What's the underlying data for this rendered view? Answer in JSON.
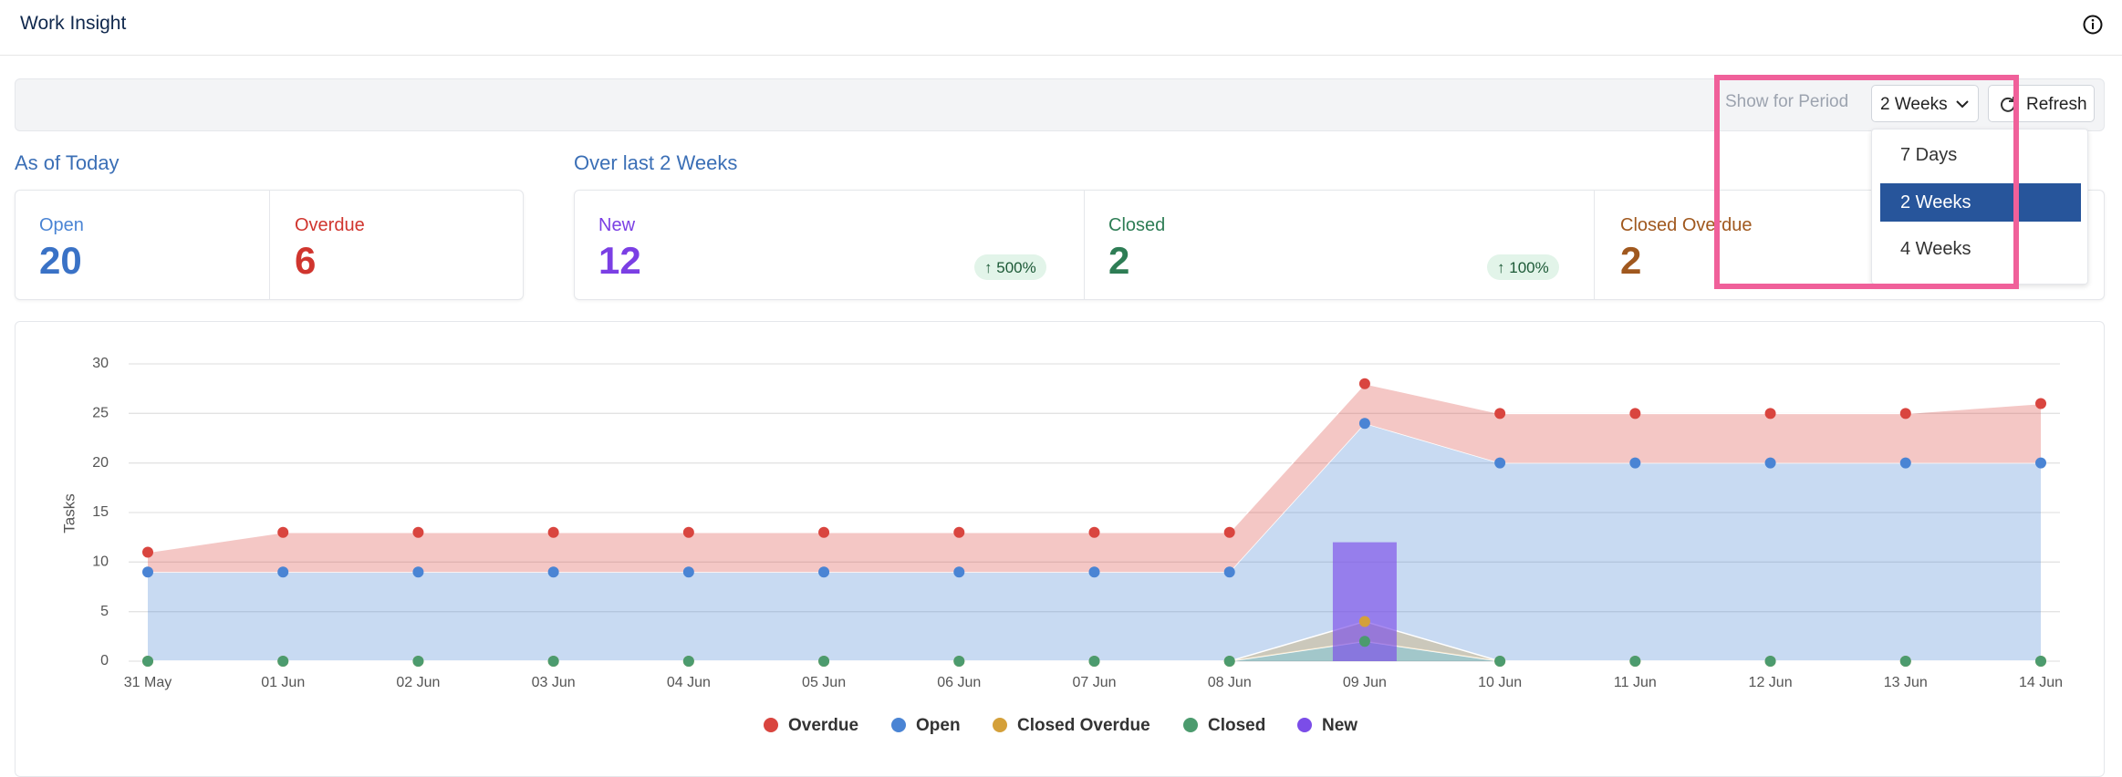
{
  "header": {
    "title": "Work Insight"
  },
  "toolbar": {
    "period_label": "Show for Period",
    "selected": "2 Weeks",
    "refresh": "Refresh",
    "options": [
      "7 Days",
      "2 Weeks",
      "4 Weeks"
    ]
  },
  "as_of_today": {
    "title": "As of Today",
    "cards": [
      {
        "label": "Open",
        "value": 20
      },
      {
        "label": "Overdue",
        "value": 6
      }
    ]
  },
  "over_period": {
    "title": "Over last 2 Weeks",
    "cards": [
      {
        "label": "New",
        "value": 12,
        "change": "500%"
      },
      {
        "label": "Closed",
        "value": 2,
        "change": "100%"
      },
      {
        "label": "Closed Overdue",
        "value": 2
      }
    ]
  },
  "chart_data": {
    "type": "area",
    "y_label": "Tasks",
    "categories": [
      "31 May",
      "01 Jun",
      "02 Jun",
      "03 Jun",
      "04 Jun",
      "05 Jun",
      "06 Jun",
      "07 Jun",
      "08 Jun",
      "09 Jun",
      "10 Jun",
      "11 Jun",
      "12 Jun",
      "13 Jun",
      "14 Jun"
    ],
    "ylim": [
      0,
      30
    ],
    "yticks": [
      0,
      5,
      10,
      15,
      20,
      25,
      30
    ],
    "grid": true,
    "series": [
      {
        "name": "Overdue",
        "color": "#d9453f",
        "values": [
          2,
          4,
          4,
          4,
          4,
          4,
          4,
          4,
          4,
          4,
          5,
          5,
          5,
          5,
          6
        ]
      },
      {
        "name": "Open",
        "color": "#4a84d4",
        "values": [
          9,
          9,
          9,
          9,
          9,
          9,
          9,
          9,
          9,
          24,
          20,
          20,
          20,
          20,
          20
        ]
      },
      {
        "name": "Closed Overdue",
        "color": "#d4a03a",
        "values": [
          0,
          0,
          0,
          0,
          0,
          0,
          0,
          0,
          0,
          2,
          0,
          0,
          0,
          0,
          0
        ]
      },
      {
        "name": "Closed",
        "color": "#4c9b6e",
        "values": [
          0,
          0,
          0,
          0,
          0,
          0,
          0,
          0,
          0,
          2,
          0,
          0,
          0,
          0,
          0
        ]
      },
      {
        "name": "New",
        "color": "#7b4de8",
        "type": "bar",
        "values": [
          0,
          0,
          0,
          0,
          0,
          0,
          0,
          0,
          0,
          12,
          0,
          0,
          0,
          0,
          0
        ]
      }
    ]
  }
}
